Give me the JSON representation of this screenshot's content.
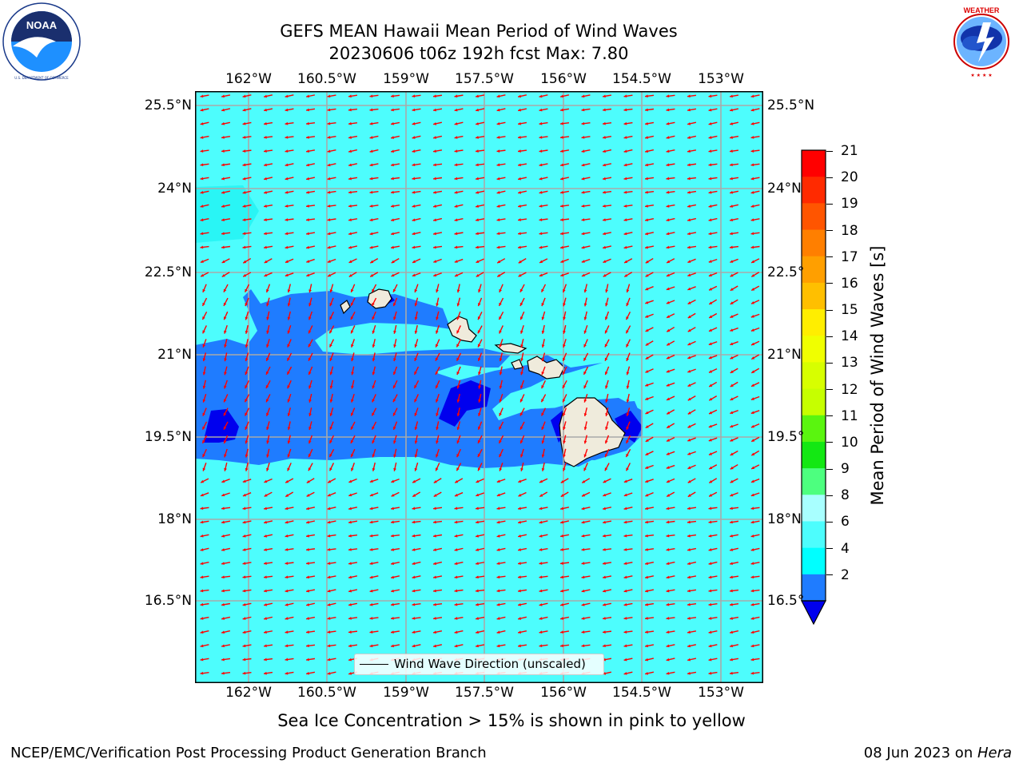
{
  "header": {
    "title_line1": "GEFS MEAN Hawaii Mean Period of Wind Waves",
    "title_line2": "20230606 t06z 192h fcst   Max: 7.80"
  },
  "logos": {
    "left": {
      "name": "NOAA",
      "ring_text": "NATIONAL OCEANIC AND ATMOSPHERIC ADMINISTRATION · U.S. DEPARTMENT OF COMMERCE"
    },
    "right": {
      "name": "NATIONAL WEATHER SERVICE"
    }
  },
  "map": {
    "lon_ticks": [
      "162°W",
      "160.5°W",
      "159°W",
      "157.5°W",
      "156°W",
      "154.5°W",
      "153°W"
    ],
    "lat_ticks": [
      "25.5°N",
      "24°N",
      "22.5°N",
      "21°N",
      "19.5°N",
      "18°N",
      "16.5°N"
    ],
    "lat_ticks_right": [
      "25.5°N",
      "24°N",
      "22.5°",
      "21°N",
      "19.5°",
      "18°N",
      "16.5°"
    ],
    "legend_label": "Wind Wave Direction (unscaled)",
    "wind_wave_direction": "arrows point west-southwest, mostly from east",
    "colors": {
      "land": "#efebdc",
      "ocean_6_8": "#4dfdfd",
      "ocean_2_4": "#1f7cff",
      "ocean_lt_2": "#0000ee",
      "arrows": "#ff0000",
      "grid": "#a9a9a9"
    }
  },
  "colorbar": {
    "label": "Mean Period of Wind Waves [s]",
    "ticks": [
      "21",
      "20",
      "19",
      "18",
      "17",
      "16",
      "15",
      "14",
      "13",
      "12",
      "11",
      "10",
      "9",
      "8",
      "6",
      "4",
      "2"
    ],
    "colors_top_to_bottom": [
      "#ff0000",
      "#ff2a00",
      "#ff5500",
      "#ff7f00",
      "#ff9f00",
      "#ffbf00",
      "#ffee00",
      "#f0ff00",
      "#d7ff00",
      "#c6ff00",
      "#5af50f",
      "#13e813",
      "#4dff7f",
      "#a8ffff",
      "#4dfdfd",
      "#00ffff",
      "#1f7cff"
    ],
    "extend_color": "#0000ee"
  },
  "notes": {
    "sea_ice": "Sea Ice Concentration > 15% is shown in pink to yellow"
  },
  "footer": {
    "left": "NCEP/EMC/Verification Post Processing Product Generation Branch",
    "right_prefix": "08 Jun 2023 on ",
    "right_machine": "Hera"
  }
}
